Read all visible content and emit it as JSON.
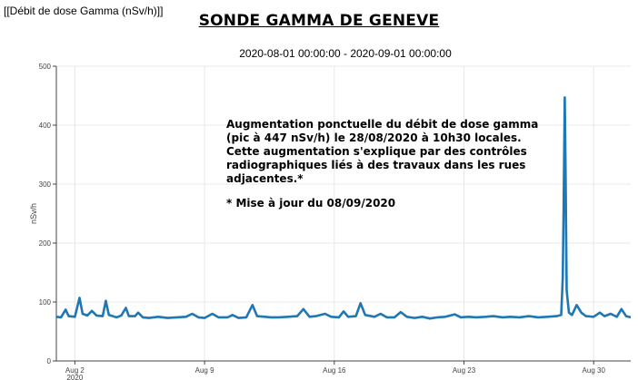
{
  "header": {
    "corner_title": "[[Débit de dose Gamma (nSv/h)]]",
    "title": "SONDE GAMMA DE GENEVE",
    "date_range": "2020-08-01 00:00:00 - 2020-09-01 00:00:00"
  },
  "annotation": {
    "text": "Augmentation ponctuelle du débit de dose gamma (pic à 447 nSv/h) le 28/08/2020 à 10h30 locales. Cette augmentation s'explique par des contrôles radiographiques liés à des travaux dans les rues adjacentes.*",
    "note": "* Mise à jour du 08/09/2020"
  },
  "colors": {
    "line": "#1f77b4",
    "grid": "#e8e8e8",
    "axis": "#444444"
  },
  "chart_data": {
    "type": "line",
    "ylabel": "nSv/h",
    "xlim": [
      "2020-08-01 00:00",
      "2020-09-01 00:00"
    ],
    "ylim": [
      0,
      500
    ],
    "grid": true,
    "x_ticks": [
      {
        "date": "2020-08-02",
        "label": "Aug 2",
        "sublabel": "2020"
      },
      {
        "date": "2020-08-09",
        "label": "Aug 9"
      },
      {
        "date": "2020-08-16",
        "label": "Aug 16"
      },
      {
        "date": "2020-08-23",
        "label": "Aug 23"
      },
      {
        "date": "2020-08-30",
        "label": "Aug 30"
      }
    ],
    "y_ticks": [
      0,
      100,
      200,
      300,
      400,
      500
    ],
    "series": [
      {
        "points": [
          [
            "2020-08-01 00:00",
            75
          ],
          [
            "2020-08-01 06:00",
            74
          ],
          [
            "2020-08-01 12:00",
            87
          ],
          [
            "2020-08-01 16:00",
            76
          ],
          [
            "2020-08-02 00:00",
            75
          ],
          [
            "2020-08-02 06:00",
            107
          ],
          [
            "2020-08-02 10:00",
            80
          ],
          [
            "2020-08-02 16:00",
            77
          ],
          [
            "2020-08-02 22:00",
            85
          ],
          [
            "2020-08-03 04:00",
            77
          ],
          [
            "2020-08-03 12:00",
            76
          ],
          [
            "2020-08-03 16:00",
            102
          ],
          [
            "2020-08-03 20:00",
            78
          ],
          [
            "2020-08-04 06:00",
            74
          ],
          [
            "2020-08-04 12:00",
            77
          ],
          [
            "2020-08-04 18:00",
            90
          ],
          [
            "2020-08-04 22:00",
            76
          ],
          [
            "2020-08-05 06:00",
            76
          ],
          [
            "2020-08-05 10:00",
            82
          ],
          [
            "2020-08-05 16:00",
            74
          ],
          [
            "2020-08-06 00:00",
            73
          ],
          [
            "2020-08-06 12:00",
            75
          ],
          [
            "2020-08-07 00:00",
            73
          ],
          [
            "2020-08-07 12:00",
            74
          ],
          [
            "2020-08-08 00:00",
            75
          ],
          [
            "2020-08-08 08:00",
            80
          ],
          [
            "2020-08-08 16:00",
            74
          ],
          [
            "2020-08-09 00:00",
            73
          ],
          [
            "2020-08-09 10:00",
            80
          ],
          [
            "2020-08-09 18:00",
            74
          ],
          [
            "2020-08-10 06:00",
            74
          ],
          [
            "2020-08-10 12:00",
            78
          ],
          [
            "2020-08-10 20:00",
            73
          ],
          [
            "2020-08-11 06:00",
            74
          ],
          [
            "2020-08-11 14:00",
            95
          ],
          [
            "2020-08-11 20:00",
            76
          ],
          [
            "2020-08-12 06:00",
            75
          ],
          [
            "2020-08-12 14:00",
            74
          ],
          [
            "2020-08-13 00:00",
            74
          ],
          [
            "2020-08-13 12:00",
            75
          ],
          [
            "2020-08-14 00:00",
            76
          ],
          [
            "2020-08-14 08:00",
            88
          ],
          [
            "2020-08-14 16:00",
            75
          ],
          [
            "2020-08-15 00:00",
            76
          ],
          [
            "2020-08-15 12:00",
            80
          ],
          [
            "2020-08-15 20:00",
            75
          ],
          [
            "2020-08-16 06:00",
            74
          ],
          [
            "2020-08-16 12:00",
            84
          ],
          [
            "2020-08-16 18:00",
            75
          ],
          [
            "2020-08-17 04:00",
            76
          ],
          [
            "2020-08-17 10:00",
            98
          ],
          [
            "2020-08-17 16:00",
            78
          ],
          [
            "2020-08-18 04:00",
            75
          ],
          [
            "2020-08-18 12:00",
            80
          ],
          [
            "2020-08-18 20:00",
            74
          ],
          [
            "2020-08-19 06:00",
            74
          ],
          [
            "2020-08-19 14:00",
            83
          ],
          [
            "2020-08-19 22:00",
            75
          ],
          [
            "2020-08-20 08:00",
            73
          ],
          [
            "2020-08-20 18:00",
            75
          ],
          [
            "2020-08-21 04:00",
            72
          ],
          [
            "2020-08-21 14:00",
            74
          ],
          [
            "2020-08-22 00:00",
            75
          ],
          [
            "2020-08-22 12:00",
            79
          ],
          [
            "2020-08-22 20:00",
            74
          ],
          [
            "2020-08-23 06:00",
            75
          ],
          [
            "2020-08-23 16:00",
            74
          ],
          [
            "2020-08-24 04:00",
            75
          ],
          [
            "2020-08-24 14:00",
            76
          ],
          [
            "2020-08-25 02:00",
            74
          ],
          [
            "2020-08-25 12:00",
            75
          ],
          [
            "2020-08-26 00:00",
            74
          ],
          [
            "2020-08-26 12:00",
            76
          ],
          [
            "2020-08-27 00:00",
            74
          ],
          [
            "2020-08-27 12:00",
            75
          ],
          [
            "2020-08-28 00:00",
            76
          ],
          [
            "2020-08-28 06:00",
            78
          ],
          [
            "2020-08-28 08:00",
            140
          ],
          [
            "2020-08-28 09:00",
            250
          ],
          [
            "2020-08-28 10:30",
            447
          ],
          [
            "2020-08-28 11:30",
            338
          ],
          [
            "2020-08-28 13:00",
            120
          ],
          [
            "2020-08-28 16:00",
            82
          ],
          [
            "2020-08-28 20:00",
            78
          ],
          [
            "2020-08-29 02:00",
            95
          ],
          [
            "2020-08-29 08:00",
            82
          ],
          [
            "2020-08-29 14:00",
            76
          ],
          [
            "2020-08-30 00:00",
            75
          ],
          [
            "2020-08-30 08:00",
            82
          ],
          [
            "2020-08-30 14:00",
            76
          ],
          [
            "2020-08-30 22:00",
            80
          ],
          [
            "2020-08-31 06:00",
            75
          ],
          [
            "2020-08-31 12:00",
            88
          ],
          [
            "2020-08-31 18:00",
            76
          ],
          [
            "2020-09-01 00:00",
            74
          ]
        ]
      }
    ]
  }
}
